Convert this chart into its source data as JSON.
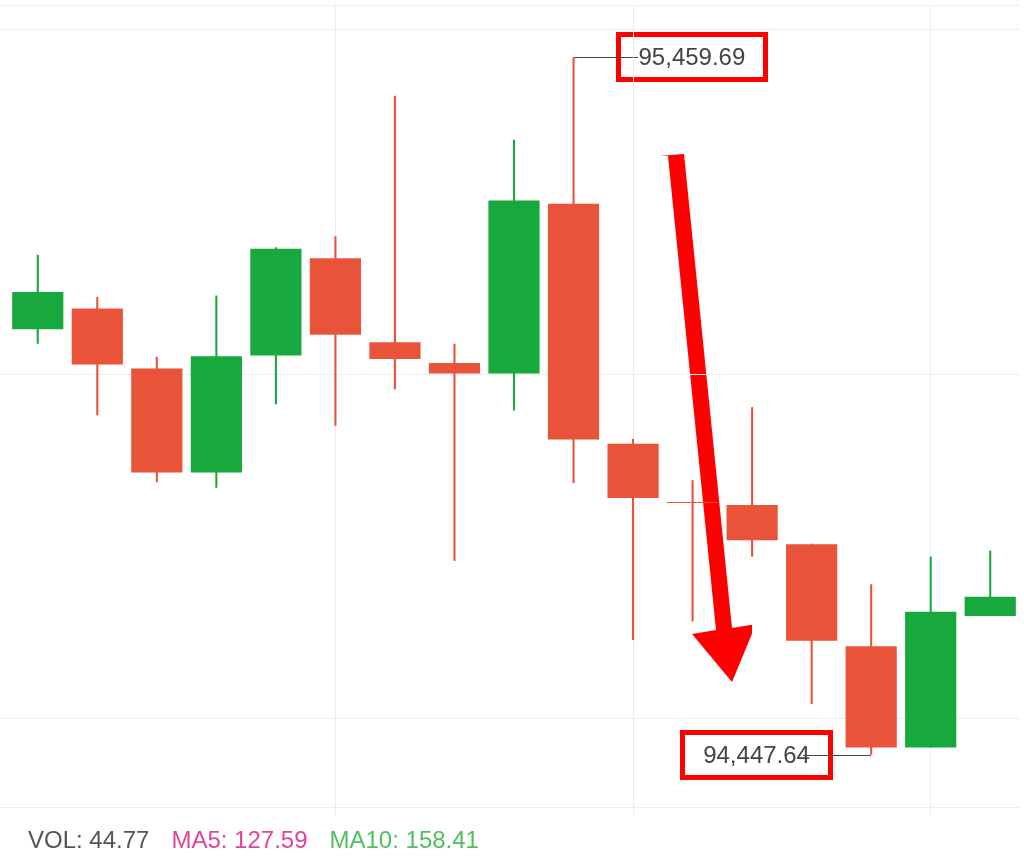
{
  "chart_data": {
    "type": "candlestick",
    "categories": [
      null,
      null,
      null,
      null,
      null,
      null,
      null,
      null,
      null,
      null,
      null,
      null,
      null,
      null,
      null,
      null,
      null
    ],
    "ohlc": [
      [
        95065,
        95173,
        95044,
        95119
      ],
      [
        95095,
        95112,
        94940,
        95014
      ],
      [
        95008,
        95025,
        94843,
        94857
      ],
      [
        94857,
        95114,
        94835,
        95026
      ],
      [
        95027,
        95184,
        94956,
        95182
      ],
      [
        95168,
        95200,
        94925,
        95057
      ],
      [
        95046,
        95404,
        94978,
        95022
      ],
      [
        95016,
        95044,
        94729,
        95001
      ],
      [
        95001,
        95340,
        94947,
        95252
      ],
      [
        95247,
        95459.69,
        94842,
        94905
      ],
      [
        94899,
        94906,
        94614,
        94820
      ],
      [
        94814,
        94846,
        94641,
        94813
      ],
      [
        94810,
        94952,
        94735,
        94759
      ],
      [
        94753,
        94754,
        94521,
        94613
      ],
      [
        94605,
        94695,
        94447.64,
        94458
      ],
      [
        94458,
        94735,
        94458,
        94655
      ],
      [
        94649,
        94744,
        94649,
        94677
      ]
    ],
    "colors": [
      "#17a83e",
      "#e8533a",
      "#e8533a",
      "#17a83e",
      "#17a83e",
      "#e8533a",
      "#e8533a",
      "#e8533a",
      "#17a83e",
      "#e8533a",
      "#e8533a",
      "#e8533a",
      "#e8533a",
      "#e8533a",
      "#e8533a",
      "#17a83e",
      "#17a83e"
    ],
    "grid": true,
    "annotations": [
      "95,459.69",
      "94,447.64",
      "VOL: 44.77",
      "MA5: 127.59",
      "MA10: 158.41"
    ]
  }
}
